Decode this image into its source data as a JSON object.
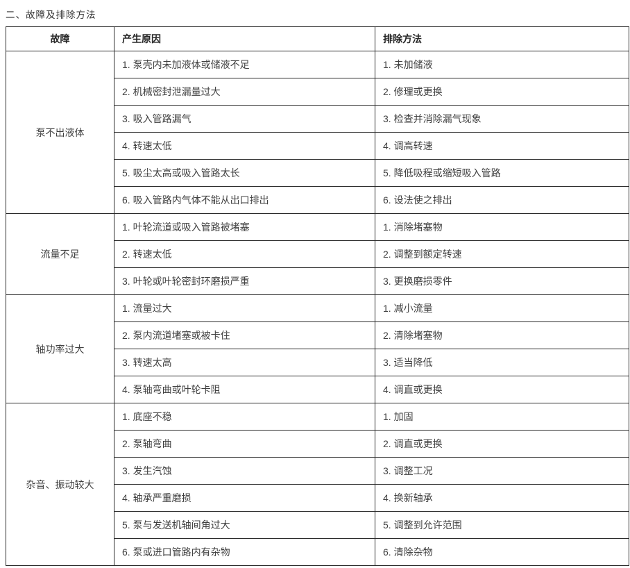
{
  "page": {
    "title": "二、故障及排除方法"
  },
  "table": {
    "headers": {
      "fault": "故障",
      "cause": "产生原因",
      "remedy": "排除方法"
    },
    "sections": [
      {
        "fault": "泵不出液体",
        "rows": [
          {
            "cause": "1. 泵壳内未加液体或储液不足",
            "remedy": "1. 未加储液"
          },
          {
            "cause": "2. 机械密封泄漏量过大",
            "remedy": "2. 修理或更换"
          },
          {
            "cause": "3. 吸入管路漏气",
            "remedy": "3. 检查并消除漏气现象"
          },
          {
            "cause": "4. 转速太低",
            "remedy": "4. 调高转速"
          },
          {
            "cause": "5. 吸尘太高或吸入管路太长",
            "remedy": "5. 降低吸程或缩短吸入管路"
          },
          {
            "cause": "6. 吸入管路内气体不能从出口排出",
            "remedy": "6. 设法使之排出"
          }
        ]
      },
      {
        "fault": "流量不足",
        "rows": [
          {
            "cause": "1. 叶轮流道或吸入管路被堵塞",
            "remedy": "1. 消除堵塞物"
          },
          {
            "cause": "2. 转速太低",
            "remedy": "2. 调整到额定转速"
          },
          {
            "cause": "3. 叶轮或叶轮密封环磨损严重",
            "remedy": "3. 更换磨损零件"
          }
        ]
      },
      {
        "fault": "轴功率过大",
        "rows": [
          {
            "cause": "1. 流量过大",
            "remedy": "1. 减小流量"
          },
          {
            "cause": "2. 泵内流道堵塞或被卡住",
            "remedy": "2. 清除堵塞物"
          },
          {
            "cause": "3. 转速太高",
            "remedy": "3. 适当降低"
          },
          {
            "cause": "4. 泵轴弯曲或叶轮卡阻",
            "remedy": "4. 调直或更换"
          }
        ]
      },
      {
        "fault": "杂音、振动较大",
        "rows": [
          {
            "cause": "1. 底座不稳",
            "remedy": "1. 加固"
          },
          {
            "cause": "2. 泵轴弯曲",
            "remedy": "2. 调直或更换"
          },
          {
            "cause": "3. 发生汽蚀",
            "remedy": "3. 调整工况"
          },
          {
            "cause": "4. 轴承严重磨损",
            "remedy": "4. 换新轴承"
          },
          {
            "cause": "5. 泵与发送机轴间角过大",
            "remedy": "5. 调整到允许范围"
          },
          {
            "cause": "6. 泵或进口管路内有杂物",
            "remedy": "6. 清除杂物"
          }
        ]
      }
    ]
  }
}
